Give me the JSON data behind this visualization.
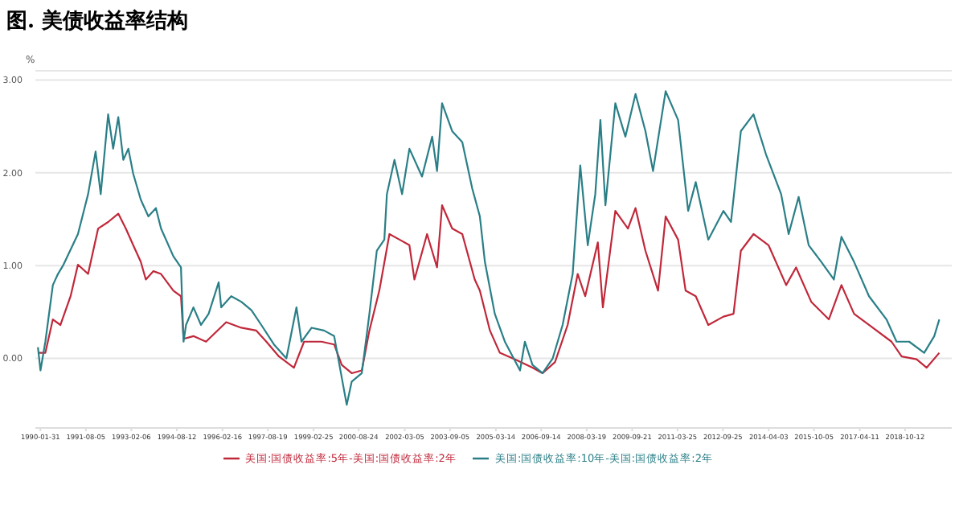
{
  "chart_data": {
    "type": "line",
    "title": "图. 美债收益率结构",
    "ylabel": "%",
    "ylim": [
      -0.75,
      3.1
    ],
    "yticks": [
      {
        "value": 0,
        "label": "0.00"
      },
      {
        "value": 1,
        "label": "1.00"
      },
      {
        "value": 2,
        "label": "2.00"
      },
      {
        "value": 3,
        "label": "3.00"
      }
    ],
    "xlim": [
      "1989-12-01",
      "2020-04-30"
    ],
    "xticks": [
      "1990-01-31",
      "1991-08-05",
      "1993-02-06",
      "1994-08-12",
      "1996-02-16",
      "1997-08-19",
      "1999-02-25",
      "2000-08-24",
      "2002-03-05",
      "2003-09-05",
      "2005-03-14",
      "2006-09-14",
      "2008-03-19",
      "2009-09-21",
      "2011-03-25",
      "2012-09-25",
      "2014-04-03",
      "2015-10-05",
      "2017-04-11",
      "2018-10-12"
    ],
    "grid": "y",
    "legend": "bottom",
    "marker": "none",
    "series": [
      {
        "name": "美国:国债收益率:5年-美国:国债收益率:2年",
        "color": "#c0283a",
        "x": [
          "1990-01",
          "1990-04",
          "1990-07",
          "1990-10",
          "1991-02",
          "1991-05",
          "1991-09",
          "1992-01",
          "1992-05",
          "1992-09",
          "1992-12",
          "1993-03",
          "1993-06",
          "1993-08",
          "1993-11",
          "1994-02",
          "1994-07",
          "1994-10",
          "1994-11",
          "1995-03",
          "1995-08",
          "1996-04",
          "1996-10",
          "1997-04",
          "1997-08",
          "1998-01",
          "1998-07",
          "1998-11",
          "1999-06",
          "1999-11",
          "2000-02",
          "2000-06",
          "2000-10",
          "2001-01",
          "2001-05",
          "2001-09",
          "2002-01",
          "2002-05",
          "2002-07",
          "2002-12",
          "2003-04",
          "2003-06",
          "2003-10",
          "2004-02",
          "2004-07",
          "2004-09",
          "2005-01",
          "2005-05",
          "2005-11",
          "2006-06",
          "2006-10",
          "2007-03",
          "2007-08",
          "2007-12",
          "2008-03",
          "2008-08",
          "2008-10",
          "2009-03",
          "2009-08",
          "2009-11",
          "2010-03",
          "2010-08",
          "2010-11",
          "2011-04",
          "2011-07",
          "2011-11",
          "2012-04",
          "2012-10",
          "2013-02",
          "2013-05",
          "2013-10",
          "2014-04",
          "2014-11",
          "2015-03",
          "2015-09",
          "2016-04",
          "2016-09",
          "2017-02",
          "2017-08",
          "2018-05",
          "2018-09",
          "2019-03",
          "2019-07",
          "2019-12"
        ],
        "values": [
          0.06,
          0.06,
          0.42,
          0.36,
          0.67,
          1.01,
          0.91,
          1.4,
          1.47,
          1.56,
          1.4,
          1.22,
          1.04,
          0.85,
          0.94,
          0.91,
          0.73,
          0.67,
          0.21,
          0.24,
          0.18,
          0.39,
          0.33,
          0.3,
          0.18,
          0.02,
          -0.1,
          0.18,
          0.18,
          0.15,
          -0.07,
          -0.16,
          -0.13,
          0.3,
          0.73,
          1.34,
          1.28,
          1.22,
          0.85,
          1.34,
          0.98,
          1.65,
          1.4,
          1.34,
          0.85,
          0.73,
          0.3,
          0.06,
          -0.01,
          -0.1,
          -0.16,
          -0.04,
          0.36,
          0.91,
          0.67,
          1.25,
          0.55,
          1.59,
          1.4,
          1.62,
          1.16,
          0.73,
          1.53,
          1.28,
          0.73,
          0.67,
          0.36,
          0.45,
          0.48,
          1.16,
          1.34,
          1.22,
          0.79,
          0.98,
          0.61,
          0.42,
          0.79,
          0.48,
          0.36,
          0.18,
          0.02,
          -0.01,
          -0.1,
          0.06
        ]
      },
      {
        "name": "美国:国债收益率:10年-美国:国债收益率:2年",
        "color": "#2a7f87",
        "x": [
          "1990-01",
          "1990-02",
          "1990-04",
          "1990-07",
          "1990-09",
          "1990-11",
          "1991-05",
          "1991-09",
          "1991-12",
          "1992-02",
          "1992-05",
          "1992-07",
          "1992-09",
          "1992-11",
          "1993-01",
          "1993-03",
          "1993-06",
          "1993-09",
          "1993-12",
          "1994-02",
          "1994-07",
          "1994-10",
          "1994-11",
          "1994-12",
          "1995-03",
          "1995-06",
          "1995-09",
          "1996-01",
          "1996-02",
          "1996-06",
          "1996-10",
          "1997-02",
          "1997-06",
          "1997-11",
          "1998-04",
          "1998-08",
          "1998-10",
          "1999-02",
          "1999-07",
          "1999-11",
          "2000-04",
          "2000-06",
          "2000-10",
          "2001-01",
          "2001-04",
          "2001-07",
          "2001-08",
          "2001-11",
          "2002-02",
          "2002-05",
          "2002-10",
          "2003-02",
          "2003-04",
          "2003-06",
          "2003-10",
          "2004-02",
          "2004-06",
          "2004-09",
          "2004-11",
          "2005-03",
          "2005-07",
          "2006-01",
          "2006-03",
          "2006-06",
          "2006-10",
          "2007-02",
          "2007-06",
          "2007-10",
          "2008-01",
          "2008-04",
          "2008-07",
          "2008-09",
          "2008-11",
          "2009-03",
          "2009-07",
          "2009-11",
          "2010-03",
          "2010-06",
          "2010-11",
          "2011-04",
          "2011-08",
          "2011-11",
          "2012-04",
          "2012-10",
          "2013-01",
          "2013-05",
          "2013-10",
          "2014-03",
          "2014-09",
          "2014-12",
          "2015-04",
          "2015-08",
          "2016-01",
          "2016-06",
          "2016-09",
          "2017-02",
          "2017-08",
          "2018-03",
          "2018-07",
          "2018-12",
          "2019-06",
          "2019-10",
          "2019-12"
        ],
        "values": [
          0.12,
          -0.13,
          0.18,
          0.79,
          0.91,
          1.0,
          1.34,
          1.77,
          2.23,
          1.77,
          2.63,
          2.26,
          2.6,
          2.14,
          2.26,
          1.99,
          1.71,
          1.53,
          1.62,
          1.4,
          1.1,
          0.98,
          0.18,
          0.36,
          0.55,
          0.36,
          0.48,
          0.82,
          0.55,
          0.67,
          0.61,
          0.52,
          0.36,
          0.15,
          0.0,
          0.55,
          0.18,
          0.33,
          0.3,
          0.24,
          -0.5,
          -0.25,
          -0.16,
          0.48,
          1.16,
          1.28,
          1.77,
          2.14,
          1.77,
          2.26,
          1.96,
          2.39,
          2.02,
          2.75,
          2.45,
          2.33,
          1.83,
          1.53,
          1.04,
          0.48,
          0.18,
          -0.13,
          0.18,
          -0.07,
          -0.16,
          0.0,
          0.36,
          0.91,
          2.08,
          1.22,
          1.77,
          2.57,
          1.65,
          2.75,
          2.39,
          2.85,
          2.45,
          2.02,
          2.88,
          2.57,
          1.59,
          1.9,
          1.28,
          1.59,
          1.47,
          2.45,
          2.63,
          2.2,
          1.77,
          1.34,
          1.74,
          1.22,
          1.04,
          0.85,
          1.31,
          1.04,
          0.67,
          0.42,
          0.18,
          0.18,
          0.06,
          0.24,
          0.42
        ]
      }
    ]
  }
}
